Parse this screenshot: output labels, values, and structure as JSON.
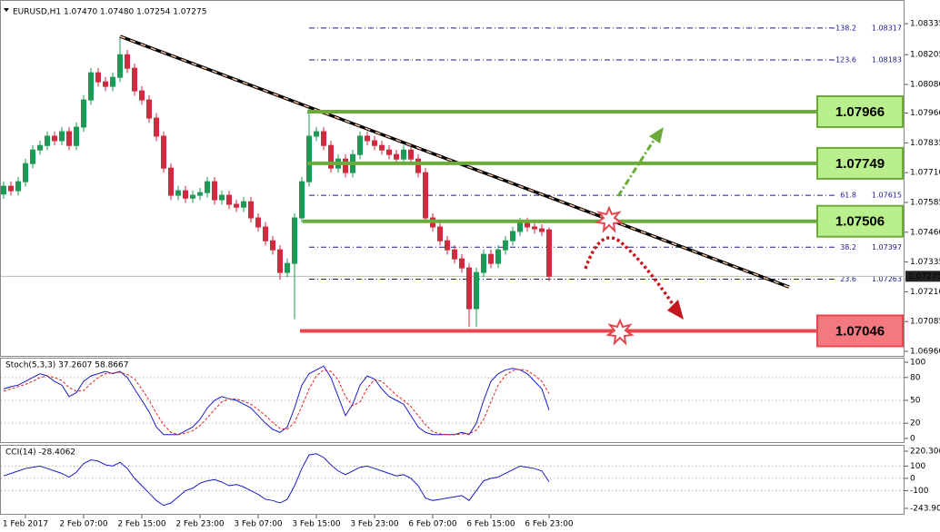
{
  "chart_data": [
    {
      "type": "candlestick",
      "title": "EURUSD,H1  1.07470 1.07480 1.07254 1.07275",
      "categories": [
        null,
        null,
        null,
        "1 Feb 2017",
        null,
        null,
        null,
        null,
        null,
        null,
        null,
        "2 Feb 07:00",
        null,
        null,
        null,
        null,
        null,
        null,
        null,
        "2 Feb 15:00",
        null,
        null,
        null,
        null,
        null,
        null,
        null,
        "2 Feb 23:00",
        null,
        null,
        null,
        null,
        null,
        null,
        null,
        "3 Feb 07:00",
        null,
        null,
        null,
        null,
        null,
        null,
        null,
        "3 Feb 15:00",
        null,
        null,
        null,
        null,
        null,
        null,
        null,
        "3 Feb 23:00",
        null,
        null,
        null,
        null,
        null,
        null,
        null,
        "6 Feb 07:00",
        null,
        null,
        null,
        null,
        null,
        null,
        null,
        "6 Feb 15:00",
        null,
        null,
        null,
        null,
        null,
        null,
        null,
        "6 Feb 23:00"
      ],
      "open": [
        1.0762,
        1.07653,
        1.07634,
        1.07672,
        1.07748,
        1.07805,
        1.07824,
        1.07863,
        1.07844,
        1.07882,
        1.07824,
        1.07901,
        1.08015,
        1.08129,
        1.08091,
        1.08072,
        1.0811,
        1.08205,
        1.08148,
        1.08053,
        1.08015,
        1.07939,
        1.07863,
        1.07729,
        1.07615,
        1.07634,
        1.07603,
        1.07615,
        1.07626,
        1.07672,
        1.07596,
        1.07615,
        1.07577,
        1.07565,
        1.07588,
        1.0752,
        1.07482,
        1.07424,
        1.07386,
        1.07291,
        1.07329,
        1.0752,
        1.07672,
        1.07863,
        1.07882,
        1.07824,
        1.07729,
        1.07767,
        1.0771,
        1.07786,
        1.07863,
        1.07844,
        1.07824,
        1.07805,
        1.07786,
        1.07767,
        1.07805,
        1.07767,
        1.0771,
        1.0752,
        1.07482,
        1.07424,
        1.07386,
        1.07348,
        1.0731,
        1.07139,
        1.07291,
        1.07367,
        1.07329,
        1.07386,
        1.07424,
        1.07463,
        1.07501,
        1.07482,
        1.07474,
        1.0747
      ],
      "high": [
        1.07673,
        1.07673,
        1.07692,
        1.07768,
        1.07825,
        1.07844,
        1.07883,
        1.07883,
        1.07902,
        1.07902,
        1.07921,
        1.08035,
        1.08149,
        1.08149,
        1.08111,
        1.0813,
        1.08282,
        1.08225,
        1.08168,
        1.08073,
        1.08035,
        1.07959,
        1.07883,
        1.07749,
        1.07654,
        1.07654,
        1.07635,
        1.07646,
        1.07692,
        1.07692,
        1.07635,
        1.07635,
        1.07597,
        1.07608,
        1.07608,
        1.0754,
        1.07502,
        1.07444,
        1.07406,
        1.07349,
        1.0754,
        1.07692,
        1.07984,
        1.07902,
        1.07902,
        1.07844,
        1.07787,
        1.07787,
        1.07806,
        1.07883,
        1.07883,
        1.07864,
        1.07844,
        1.07825,
        1.07806,
        1.07825,
        1.07825,
        1.07787,
        1.0773,
        1.0754,
        1.07502,
        1.07444,
        1.07406,
        1.07368,
        1.0733,
        1.07311,
        1.07387,
        1.07387,
        1.07406,
        1.07444,
        1.07483,
        1.07521,
        1.07521,
        1.07502,
        1.07494,
        1.0748
      ],
      "low": [
        1.076,
        1.07614,
        1.07614,
        1.07652,
        1.07728,
        1.07785,
        1.07804,
        1.07824,
        1.07824,
        1.07804,
        1.07804,
        1.07881,
        1.07995,
        1.08071,
        1.08052,
        1.08052,
        1.0809,
        1.08128,
        1.08033,
        1.07995,
        1.07919,
        1.07843,
        1.07709,
        1.07595,
        1.07595,
        1.07583,
        1.07583,
        1.07595,
        1.07606,
        1.07576,
        1.07576,
        1.07557,
        1.07545,
        1.07545,
        1.075,
        1.07462,
        1.07404,
        1.07366,
        1.0726,
        1.07271,
        1.07095,
        1.075,
        1.07652,
        1.07843,
        1.07804,
        1.07709,
        1.07709,
        1.0769,
        1.0769,
        1.07766,
        1.07824,
        1.07804,
        1.07785,
        1.07766,
        1.07747,
        1.07747,
        1.07747,
        1.0769,
        1.075,
        1.07462,
        1.07404,
        1.07366,
        1.07328,
        1.0729,
        1.07062,
        1.07062,
        1.07271,
        1.07309,
        1.07309,
        1.07366,
        1.07404,
        1.07443,
        1.07462,
        1.07454,
        1.07443,
        1.07254
      ],
      "close": [
        1.07653,
        1.07634,
        1.07672,
        1.07748,
        1.07805,
        1.07824,
        1.07863,
        1.07844,
        1.07882,
        1.07824,
        1.07901,
        1.08015,
        1.08129,
        1.08091,
        1.08072,
        1.0811,
        1.08205,
        1.08148,
        1.08053,
        1.08015,
        1.07939,
        1.07863,
        1.07729,
        1.07615,
        1.07634,
        1.07603,
        1.07615,
        1.07626,
        1.07672,
        1.07596,
        1.07615,
        1.07577,
        1.07565,
        1.07588,
        1.0752,
        1.07482,
        1.07424,
        1.07386,
        1.07291,
        1.07329,
        1.0752,
        1.07672,
        1.07863,
        1.07882,
        1.07824,
        1.07729,
        1.07767,
        1.0771,
        1.07786,
        1.07863,
        1.07844,
        1.07824,
        1.07805,
        1.07786,
        1.07767,
        1.07805,
        1.07767,
        1.0771,
        1.0752,
        1.07482,
        1.07424,
        1.07386,
        1.07348,
        1.0731,
        1.07139,
        1.07291,
        1.07367,
        1.07329,
        1.07386,
        1.07424,
        1.07463,
        1.07501,
        1.07482,
        1.07474,
        1.07463,
        1.07275
      ],
      "up_color": "#1f9a55",
      "down_color": "#cf2a3e",
      "ylim": [
        1.06941,
        1.08404
      ],
      "yticks": [
        1.08335,
        1.08205,
        {
          "value": 1.0808,
          "label": "1.08080"
        },
        {
          "value": 1.0796,
          "label": "1.07960"
        },
        1.07835,
        {
          "value": 1.0771,
          "label": "1.07710"
        },
        1.07585,
        {
          "value": 1.0746,
          "label": "1.07460"
        },
        1.07335,
        {
          "value": 1.0721,
          "label": "1.07210"
        },
        1.07085,
        {
          "value": 1.0696,
          "label": "1.06960"
        }
      ],
      "levels": [
        {
          "value": 1.07966,
          "color": "#6aab3a",
          "fill": "#b9ef8c"
        },
        {
          "value": 1.07749,
          "color": "#6aab3a",
          "fill": "#b9ef8c"
        },
        {
          "value": 1.07506,
          "color": "#6aab3a",
          "fill": "#b9ef8c"
        },
        {
          "value": 1.07046,
          "color": "#e8464f",
          "fill": "#f4797f"
        }
      ],
      "fibs": [
        {
          "ratio": 138.2,
          "value": 1.08317
        },
        {
          "ratio": 123.6,
          "value": 1.08183
        },
        {
          "ratio": 61.8,
          "value": 1.07615
        },
        {
          "ratio": 38.2,
          "value": 1.07397
        },
        {
          "ratio": 23.6,
          "value": 1.07263
        }
      ],
      "trendline": {
        "from": [
          16,
          1.08282
        ],
        "to": [
          108,
          1.0723
        ]
      }
    },
    {
      "type": "line",
      "title": "Stoch(5,3,3) 37.2607 58.8667",
      "series": [
        {
          "color": "#1c1cc8",
          "values": [
            65,
            68,
            70,
            75,
            80,
            85,
            82,
            75,
            70,
            55,
            60,
            75,
            82,
            85,
            88,
            85,
            88,
            80,
            65,
            50,
            35,
            15,
            5,
            5,
            5,
            10,
            15,
            25,
            40,
            50,
            55,
            52,
            50,
            45,
            40,
            30,
            20,
            12,
            8,
            15,
            40,
            70,
            85,
            90,
            95,
            80,
            55,
            30,
            45,
            70,
            82,
            78,
            65,
            55,
            50,
            45,
            30,
            15,
            8,
            5,
            5,
            5,
            5,
            8,
            5,
            20,
            50,
            75,
            85,
            90,
            92,
            90,
            85,
            75,
            65,
            37.2607
          ]
        },
        {
          "color": "#e02020",
          "dashed": true,
          "values": [
            62,
            65,
            68,
            71,
            75,
            80,
            82,
            80,
            76,
            67,
            62,
            63,
            72,
            80,
            85,
            86,
            87,
            84,
            78,
            65,
            50,
            33,
            18,
            8,
            5,
            7,
            10,
            17,
            27,
            38,
            48,
            52,
            52,
            49,
            45,
            38,
            30,
            21,
            13,
            12,
            21,
            42,
            65,
            82,
            90,
            88,
            77,
            55,
            43,
            48,
            66,
            77,
            75,
            66,
            57,
            50,
            42,
            30,
            18,
            9,
            6,
            5,
            5,
            6,
            6,
            11,
            25,
            48,
            70,
            83,
            89,
            91,
            89,
            83,
            75,
            58.8667
          ]
        }
      ],
      "ylim": [
        -4.8,
        104.8
      ],
      "yticks": [
        100,
        80,
        50,
        20,
        0
      ],
      "grid": true
    },
    {
      "type": "line",
      "title": "CCI(14) -28.4062",
      "series": [
        {
          "color": "#1c1cc8",
          "values": [
            20,
            40,
            60,
            80,
            90,
            100,
            80,
            60,
            40,
            10,
            50,
            120,
            150,
            140,
            110,
            100,
            130,
            80,
            0,
            -60,
            -120,
            -180,
            -220,
            -200,
            -150,
            -100,
            -80,
            -40,
            -20,
            -10,
            -30,
            -60,
            -50,
            -70,
            -100,
            -130,
            -170,
            -180,
            -200,
            -170,
            -60,
            80,
            190,
            200,
            170,
            110,
            60,
            30,
            60,
            90,
            100,
            80,
            60,
            40,
            20,
            30,
            0,
            -60,
            -160,
            -180,
            -170,
            -160,
            -150,
            -140,
            -180,
            -100,
            -20,
            0,
            10,
            40,
            70,
            100,
            90,
            80,
            60,
            -28.4062
          ]
        }
      ],
      "ylim": [
        -281,
        250
      ],
      "yticks": [
        220.3065,
        100,
        0,
        -100,
        -243.9047
      ],
      "grid": true
    }
  ]
}
